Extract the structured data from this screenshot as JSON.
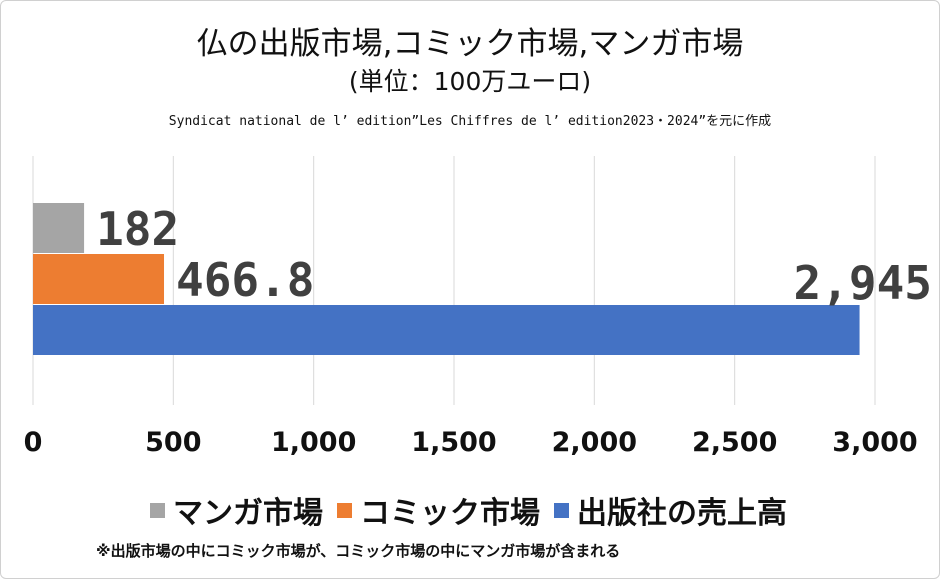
{
  "titles": {
    "main": "仏の出版市場,コミック市場,マンガ市場",
    "unit": "(単位：100万ユーロ)",
    "source": "Syndicat national de l’ edition”Les Chiffres de l’ edition2023・2024”を元に作成"
  },
  "footnote": "※出版市場の中にコミック市場が、コミック市場の中にマンガ市場が含まれる",
  "colors": {
    "manga": "#a5a5a5",
    "comic": "#ed7d31",
    "publisher": "#4472c4",
    "grid": "#d9d9d9"
  },
  "chart_data": {
    "type": "bar",
    "orientation": "horizontal",
    "title": "仏の出版市場,コミック市場,マンガ市場",
    "subtitle": "(単位：100万ユーロ)",
    "xlim": [
      0,
      3000
    ],
    "x_ticks": [
      "0",
      "500",
      "1,000",
      "1,500",
      "2,000",
      "2,500",
      "3,000"
    ],
    "grid": true,
    "legend_placement": "bottom",
    "series": [
      {
        "name": "マンガ市場",
        "value": 182,
        "label": "182"
      },
      {
        "name": "コミック市場",
        "value": 466.8,
        "label": "466.8"
      },
      {
        "name": "出版社の売上高",
        "value": 2945,
        "label": "2,945"
      }
    ]
  }
}
